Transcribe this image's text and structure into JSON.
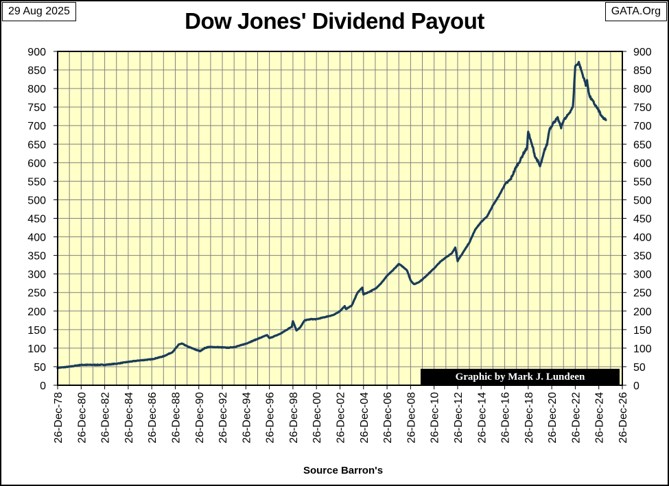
{
  "header": {
    "date": "29 Aug 2025",
    "site": "GATA.Org",
    "credit": "Graphic by Mark J. Lundeen"
  },
  "colors": {
    "plot_background": "#ffffc8",
    "grid": "#808080",
    "line": "#1a3c5a"
  },
  "chart_data": {
    "type": "line",
    "title": "Dow Jones' Dividend Payout",
    "xlabel": "Source Barron's",
    "ylabel": "",
    "ylim": [
      0,
      900
    ],
    "yticks": [
      0,
      50,
      100,
      150,
      200,
      250,
      300,
      350,
      400,
      450,
      500,
      550,
      600,
      650,
      700,
      750,
      800,
      850,
      900
    ],
    "right_axis": true,
    "grid": true,
    "xticks": [
      "26-Dec-78",
      "26-Dec-80",
      "26-Dec-82",
      "26-Dec-84",
      "26-Dec-86",
      "26-Dec-88",
      "26-Dec-90",
      "26-Dec-92",
      "26-Dec-94",
      "26-Dec-96",
      "26-Dec-98",
      "26-Dec-00",
      "26-Dec-02",
      "26-Dec-04",
      "26-Dec-06",
      "26-Dec-08",
      "26-Dec-10",
      "26-Dec-12",
      "26-Dec-14",
      "26-Dec-16",
      "26-Dec-18",
      "26-Dec-20",
      "26-Dec-22",
      "26-Dec-24",
      "26-Dec-26"
    ],
    "xlim": [
      1979.0,
      2027.0
    ],
    "series": [
      {
        "x": [
          1979.0,
          1980.0,
          1981.0,
          1982.0,
          1983.0,
          1984.0,
          1985.0,
          1986.0,
          1987.0,
          1988.0,
          1988.8,
          1989.3,
          1989.6,
          1990.0,
          1990.4,
          1990.8,
          1991.1,
          1991.5,
          1991.8,
          1992.3,
          1993.0,
          1993.5,
          1994.0,
          1994.5,
          1995.0,
          1996.0,
          1996.8,
          1997.0,
          1997.5,
          1998.0,
          1998.5,
          1998.9,
          1999.0,
          1999.3,
          1999.6,
          2000.0,
          2000.5,
          2001.0,
          2001.5,
          2002.0,
          2002.5,
          2003.0,
          2003.4,
          2003.5,
          2004.0,
          2004.5,
          2004.9,
          2005.0,
          2005.5,
          2006.0,
          2006.5,
          2007.0,
          2007.5,
          2008.0,
          2008.4,
          2008.7,
          2009.0,
          2009.3,
          2009.7,
          2010.0,
          2010.5,
          2011.0,
          2011.5,
          2012.0,
          2012.5,
          2012.8,
          2013.0,
          2013.1,
          2013.5,
          2014.0,
          2014.5,
          2015.0,
          2015.5,
          2016.0,
          2016.5,
          2017.0,
          2017.5,
          2018.0,
          2018.3,
          2018.6,
          2018.9,
          2019.0,
          2019.2,
          2019.4,
          2019.6,
          2019.8,
          2020.0,
          2020.2,
          2020.4,
          2020.6,
          2020.8,
          2021.0,
          2021.2,
          2021.5,
          2021.8,
          2022.0,
          2022.2,
          2022.4,
          2022.6,
          2022.8,
          2023.0,
          2023.3,
          2023.6,
          2023.9,
          2024.0,
          2024.1,
          2024.2,
          2024.4,
          2024.6,
          2024.8,
          2025.0,
          2025.1,
          2025.2,
          2025.4,
          2025.6
        ],
        "y": [
          47,
          50,
          55,
          55,
          55,
          58,
          63,
          67,
          70,
          78,
          90,
          110,
          112,
          105,
          100,
          95,
          92,
          100,
          103,
          103,
          102,
          101,
          103,
          107,
          112,
          125,
          135,
          127,
          133,
          140,
          150,
          158,
          173,
          148,
          155,
          175,
          178,
          178,
          182,
          186,
          190,
          200,
          213,
          205,
          215,
          250,
          263,
          245,
          252,
          260,
          275,
          295,
          310,
          327,
          318,
          310,
          283,
          272,
          278,
          285,
          300,
          315,
          332,
          345,
          355,
          372,
          335,
          340,
          360,
          385,
          420,
          440,
          455,
          485,
          510,
          540,
          555,
          590,
          605,
          625,
          640,
          685,
          660,
          640,
          615,
          605,
          590,
          610,
          635,
          650,
          690,
          700,
          710,
          720,
          695,
          715,
          720,
          730,
          740,
          750,
          860,
          870,
          840,
          810,
          820,
          800,
          780,
          770,
          760,
          750,
          740,
          735,
          725,
          720,
          715
        ]
      }
    ]
  }
}
